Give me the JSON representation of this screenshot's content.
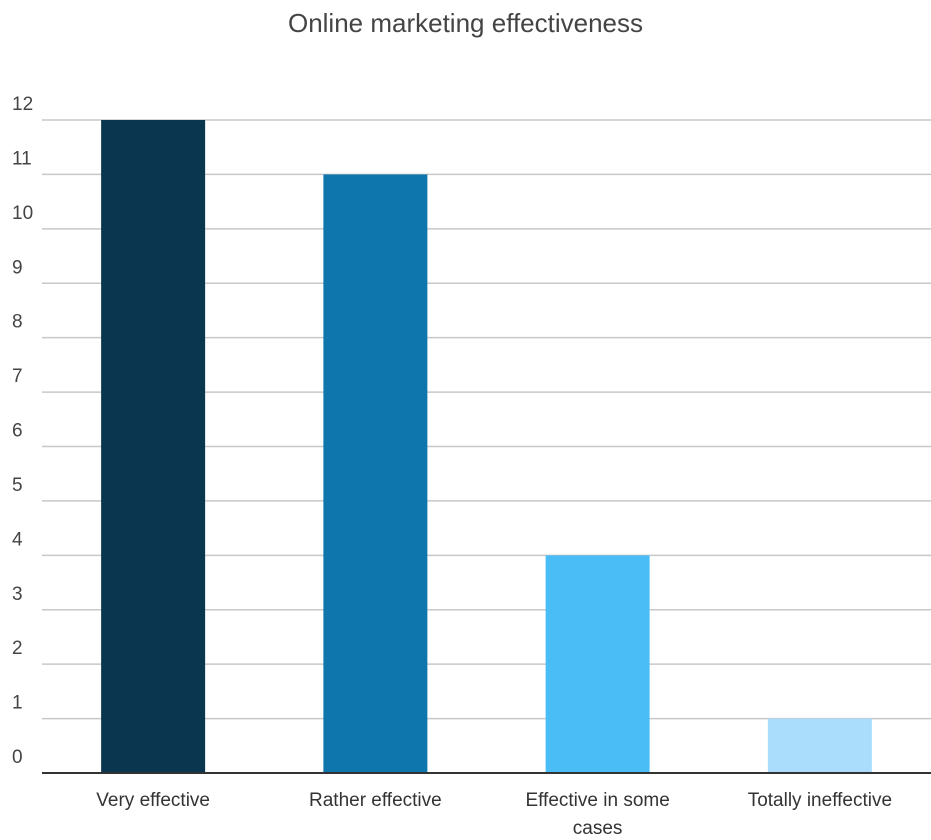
{
  "chart_data": {
    "type": "bar",
    "title": "Online marketing effectiveness",
    "xlabel": "",
    "ylabel": "",
    "categories": [
      "Very effective",
      "Rather effective",
      "Effective in some cases",
      "Totally ineffective"
    ],
    "category_lines": [
      [
        "Very effective"
      ],
      [
        "Rather effective"
      ],
      [
        "Effective in some",
        "cases"
      ],
      [
        "Totally ineffective"
      ]
    ],
    "values": [
      12,
      11,
      4,
      1
    ],
    "colors": [
      "#0b3650",
      "#0f76ad",
      "#4bbdf6",
      "#a9ddfb"
    ],
    "ylim": [
      0,
      12
    ],
    "yticks": [
      0,
      1,
      2,
      3,
      4,
      5,
      6,
      7,
      8,
      9,
      10,
      11,
      12
    ],
    "grid": true,
    "legend": "none"
  }
}
